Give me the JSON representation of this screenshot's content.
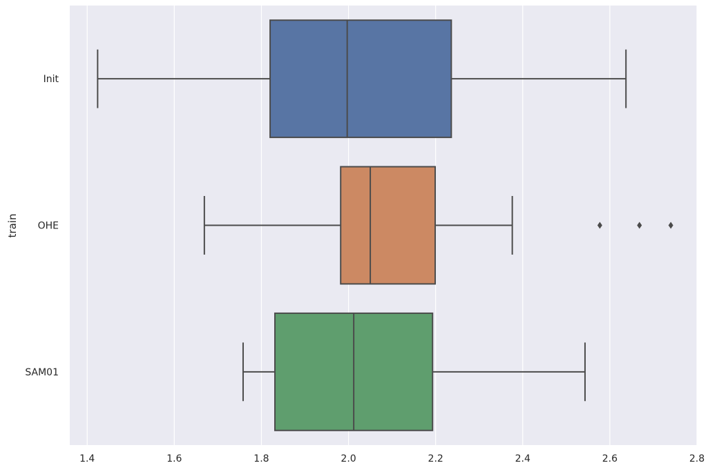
{
  "chart_data": {
    "type": "boxplot",
    "orientation": "horizontal",
    "title": "",
    "xlabel": "",
    "ylabel": "train",
    "xlim": [
      1.36,
      2.8
    ],
    "x_ticks": [
      "1.4",
      "1.6",
      "1.8",
      "2.0",
      "2.2",
      "2.4",
      "2.6",
      "2.8"
    ],
    "grid": true,
    "categories": [
      "Init",
      "OHE",
      "SAM01"
    ],
    "series": [
      {
        "category": "Init",
        "color": "#5875a4",
        "whisker_low": 1.424,
        "q1": 1.82,
        "median": 1.997,
        "q3": 2.236,
        "whisker_high": 2.637,
        "outliers": []
      },
      {
        "category": "OHE",
        "color": "#cc8963",
        "whisker_low": 1.669,
        "q1": 1.982,
        "median": 2.05,
        "q3": 2.199,
        "whisker_high": 2.376,
        "outliers": [
          2.577,
          2.668,
          2.74
        ]
      },
      {
        "category": "SAM01",
        "color": "#5f9e6e",
        "whisker_low": 1.758,
        "q1": 1.831,
        "median": 2.012,
        "q3": 2.193,
        "whisker_high": 2.543,
        "outliers": []
      }
    ]
  }
}
